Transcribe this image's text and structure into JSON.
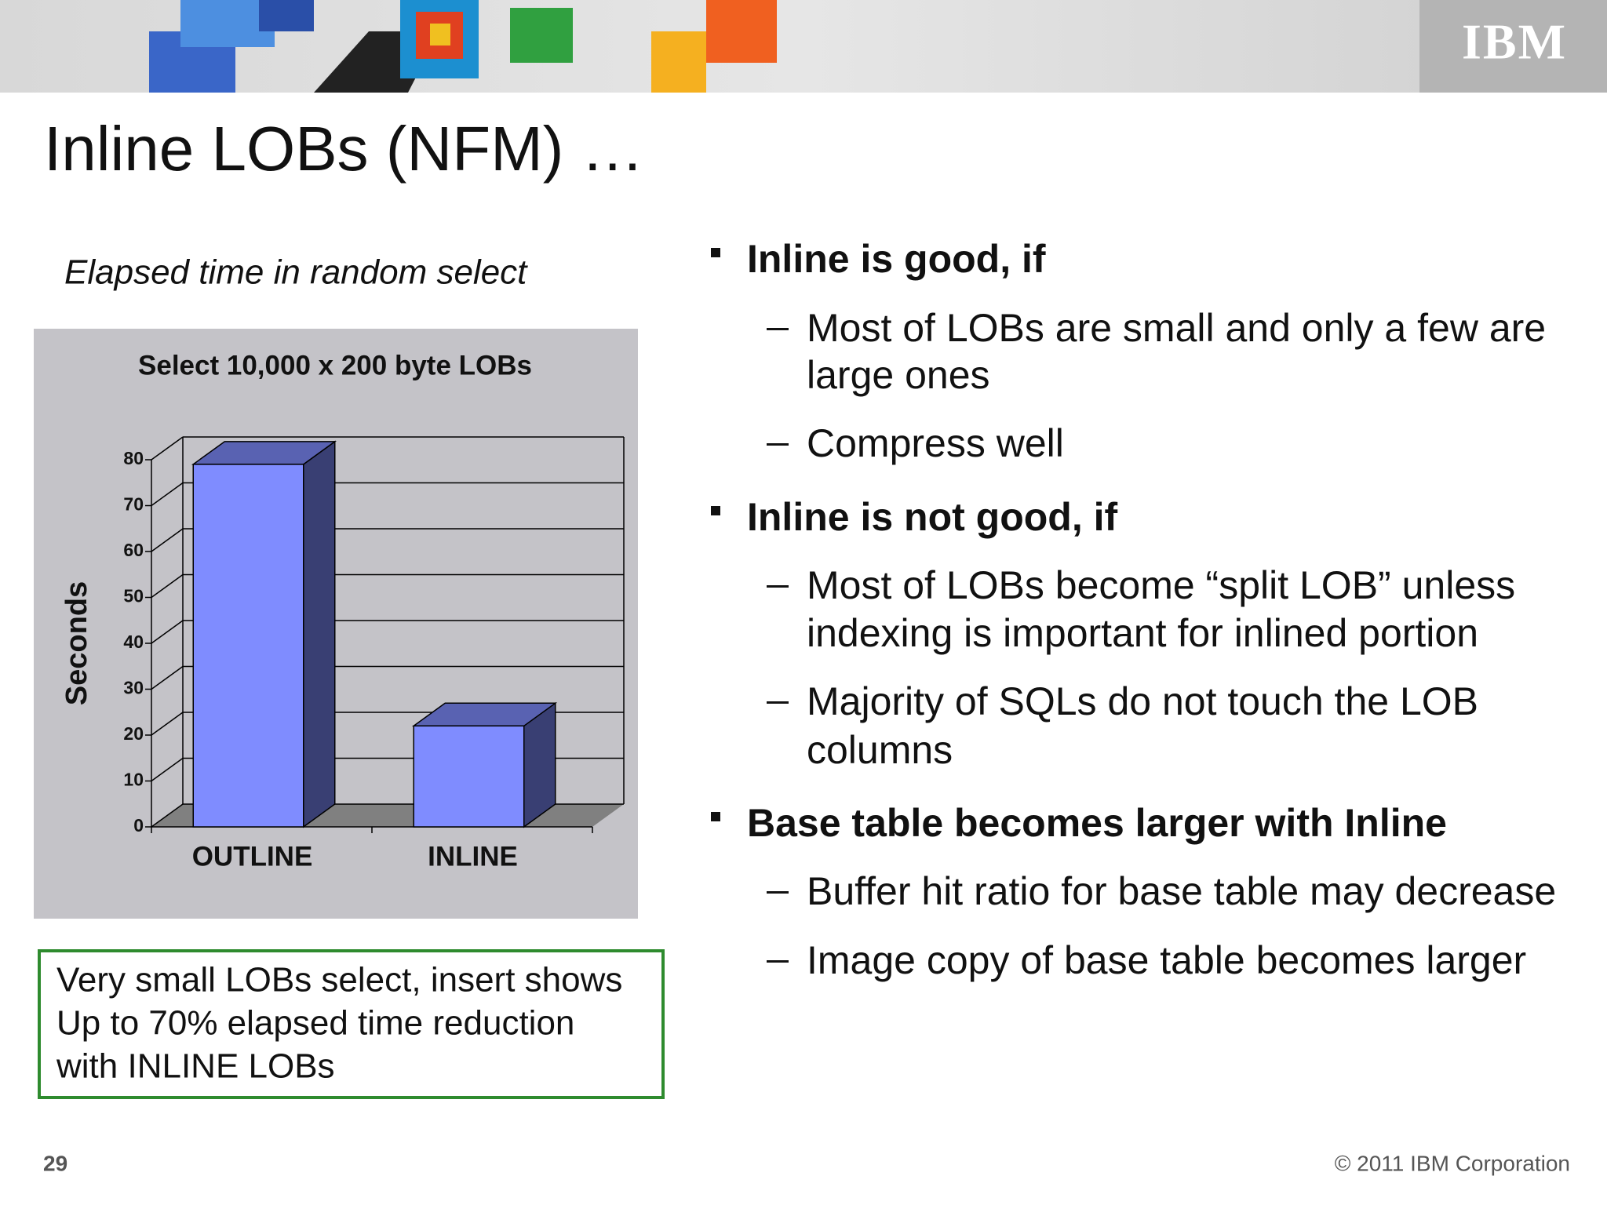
{
  "header": {
    "logo": "IBM",
    "title": "Inline LOBs (NFM) …",
    "subtitle": "Elapsed time in random select"
  },
  "chart_data": {
    "type": "bar3d",
    "title": "Select 10,000 x 200 byte LOBs",
    "y_label": "Seconds",
    "categories": [
      "OUTLINE",
      "INLINE"
    ],
    "series": [
      {
        "color": "#7f8cff",
        "values": [
          79,
          22
        ]
      }
    ],
    "ylim": [
      0,
      80
    ],
    "yticks": [
      0,
      10,
      20,
      30,
      40,
      50,
      60,
      70,
      80
    ],
    "grid": true
  },
  "callout": [
    "Very small LOBs select, insert shows",
    "Up to 70% elapsed time reduction",
    "with INLINE LOBs"
  ],
  "bullets": [
    {
      "text": "Inline is good, if",
      "items": [
        [
          "Most of LOBs are small and only a few are",
          "large ones"
        ],
        [
          "Compress well"
        ]
      ]
    },
    {
      "text": "Inline is not good, if",
      "items": [
        [
          "Most of LOBs become “split LOB” unless",
          "indexing is important for inlined portion"
        ],
        [
          "Majority of SQLs do not touch the LOB",
          "columns"
        ]
      ]
    },
    {
      "text": "Base table becomes larger with Inline",
      "items": [
        [
          "Buffer hit ratio for base table may decrease"
        ],
        [
          "Image copy of base table becomes larger"
        ]
      ]
    }
  ],
  "footer": {
    "page": "29",
    "copyright": "© 2011 IBM Corporation"
  }
}
